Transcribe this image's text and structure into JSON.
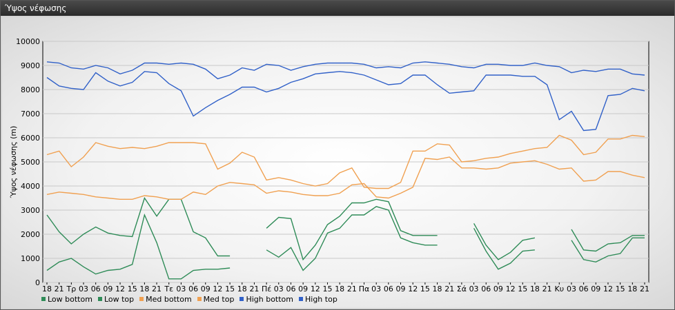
{
  "window": {
    "title": "Ύψος νέφωσης"
  },
  "chart_data": {
    "type": "line",
    "title": "",
    "ylabel": "Ύψος νέφωσης (m)",
    "xlabel": "",
    "ylim": [
      0,
      10000
    ],
    "yticks": [
      0,
      1000,
      2000,
      3000,
      4000,
      5000,
      6000,
      7000,
      8000,
      9000,
      10000
    ],
    "grid": true,
    "legend_position": "bottom-left",
    "x": [
      "18",
      "21",
      "Τρ",
      "03",
      "06",
      "09",
      "12",
      "15",
      "18",
      "21",
      "Τε",
      "03",
      "06",
      "09",
      "12",
      "15",
      "18",
      "21",
      "Πέ",
      "03",
      "06",
      "09",
      "12",
      "15",
      "18",
      "21",
      "Πα",
      "03",
      "06",
      "09",
      "12",
      "15",
      "18",
      "21",
      "Σά",
      "03",
      "06",
      "09",
      "12",
      "15",
      "18",
      "21",
      "Κυ",
      "03",
      "06",
      "09",
      "12",
      "15",
      "18",
      "21"
    ],
    "series": [
      {
        "name": "Low bottom",
        "color": "#2e8b57",
        "values": [
          500,
          850,
          1000,
          650,
          350,
          500,
          550,
          750,
          2800,
          1650,
          150,
          150,
          500,
          550,
          550,
          600,
          null,
          null,
          1350,
          1050,
          1450,
          500,
          1000,
          2050,
          2250,
          2800,
          2800,
          3150,
          3000,
          1850,
          1650,
          1550,
          1550,
          null,
          null,
          2250,
          1300,
          550,
          800,
          1300,
          1350,
          null,
          null,
          1750,
          950,
          850,
          1100,
          1200,
          1850,
          1850
        ]
      },
      {
        "name": "Low top",
        "color": "#2e8b57",
        "values": [
          2800,
          2100,
          1600,
          2000,
          2300,
          2050,
          1950,
          1900,
          3500,
          2750,
          3450,
          3450,
          2100,
          1850,
          1100,
          1100,
          null,
          null,
          2250,
          2700,
          2650,
          950,
          1550,
          2400,
          2750,
          3300,
          3300,
          3450,
          3350,
          2150,
          1950,
          1950,
          1950,
          null,
          null,
          2450,
          1550,
          950,
          1250,
          1750,
          1850,
          null,
          null,
          2200,
          1350,
          1300,
          1600,
          1650,
          1950,
          1950
        ]
      },
      {
        "name": "Med bottom",
        "color": "#f0a050",
        "values": [
          3650,
          3750,
          3700,
          3650,
          3550,
          3500,
          3450,
          3450,
          3600,
          3550,
          3450,
          3450,
          3750,
          3650,
          4000,
          4150,
          4100,
          4050,
          3700,
          3800,
          3750,
          3650,
          3600,
          3600,
          3700,
          4050,
          4100,
          3550,
          3500,
          3700,
          3950,
          5150,
          5100,
          5200,
          4750,
          4750,
          4700,
          4750,
          4950,
          5000,
          5050,
          4900,
          4700,
          4750,
          4200,
          4250,
          4600,
          4600,
          4450,
          4350
        ]
      },
      {
        "name": "Med top",
        "color": "#f0a050",
        "values": [
          5300,
          5450,
          4800,
          5200,
          5800,
          5650,
          5550,
          5600,
          5550,
          5650,
          5800,
          5800,
          5800,
          5750,
          4700,
          4950,
          5400,
          5200,
          4250,
          4350,
          4250,
          4100,
          4000,
          4100,
          4550,
          4750,
          3950,
          3900,
          3900,
          4150,
          5450,
          5450,
          5750,
          5700,
          5000,
          5050,
          5150,
          5200,
          5350,
          5450,
          5550,
          5600,
          6100,
          5900,
          5300,
          5400,
          5950,
          5950,
          6100,
          6050
        ]
      },
      {
        "name": "High bottom",
        "color": "#3060c8",
        "values": [
          8500,
          8150,
          8050,
          8000,
          8700,
          8350,
          8150,
          8300,
          8750,
          8700,
          8250,
          7950,
          6900,
          7250,
          7550,
          7800,
          8100,
          8100,
          7900,
          8050,
          8300,
          8450,
          8650,
          8700,
          8750,
          8700,
          8600,
          8400,
          8200,
          8250,
          8600,
          8600,
          8200,
          7850,
          7900,
          7950,
          8600,
          8600,
          8600,
          8550,
          8550,
          8200,
          6750,
          7100,
          6300,
          6350,
          7750,
          7800,
          8050,
          7950
        ]
      },
      {
        "name": "High top",
        "color": "#3060c8",
        "values": [
          9150,
          9100,
          8900,
          8850,
          9000,
          8900,
          8650,
          8800,
          9100,
          9100,
          9050,
          9100,
          9050,
          8850,
          8450,
          8600,
          8900,
          8800,
          9050,
          9000,
          8800,
          8950,
          9050,
          9100,
          9100,
          9100,
          9050,
          8900,
          8950,
          8900,
          9100,
          9150,
          9100,
          9050,
          8950,
          8900,
          9050,
          9050,
          9000,
          9000,
          9100,
          9000,
          8950,
          8700,
          8800,
          8750,
          8850,
          8850,
          8650,
          8600
        ]
      }
    ]
  }
}
